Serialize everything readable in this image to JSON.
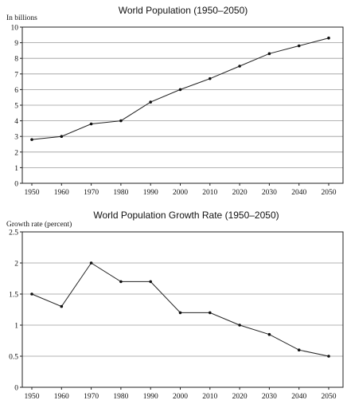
{
  "chart_data": [
    {
      "type": "line",
      "title": "World Population (1950–2050)",
      "ylabel": "In billions",
      "xlabel": "",
      "x": [
        1950,
        1960,
        1970,
        1980,
        1990,
        2000,
        2010,
        2020,
        2030,
        2040,
        2050
      ],
      "x_ticks": [
        "1950",
        "1960",
        "1970",
        "1980",
        "1990",
        "2000",
        "2010",
        "2020",
        "2030",
        "2040",
        "2050"
      ],
      "series": [
        {
          "values": [
            2.8,
            3.0,
            3.8,
            4.0,
            5.2,
            6.0,
            6.7,
            7.5,
            8.3,
            8.8,
            9.3
          ]
        }
      ],
      "ylim": [
        0,
        10
      ],
      "y_ticks": [
        "0",
        "1",
        "2",
        "3",
        "4",
        "5",
        "6",
        "7",
        "8",
        "9",
        "10"
      ],
      "grid": "horizontal"
    },
    {
      "type": "line",
      "title": "World Population Growth Rate (1950–2050)",
      "ylabel": "Growth rate (percent)",
      "xlabel": "",
      "x": [
        1950,
        1960,
        1970,
        1980,
        1990,
        2000,
        2010,
        2020,
        2030,
        2040,
        2050
      ],
      "x_ticks": [
        "1950",
        "1960",
        "1970",
        "1980",
        "1990",
        "2000",
        "2010",
        "2020",
        "2030",
        "2040",
        "2050"
      ],
      "series": [
        {
          "values": [
            1.5,
            1.3,
            2.0,
            1.7,
            1.7,
            1.2,
            1.2,
            1.0,
            0.85,
            0.6,
            0.5
          ]
        }
      ],
      "ylim": [
        0,
        2.5
      ],
      "y_ticks": [
        "0",
        "0.5",
        "1",
        "1.5",
        "2",
        "2.5"
      ],
      "grid": "horizontal"
    }
  ]
}
